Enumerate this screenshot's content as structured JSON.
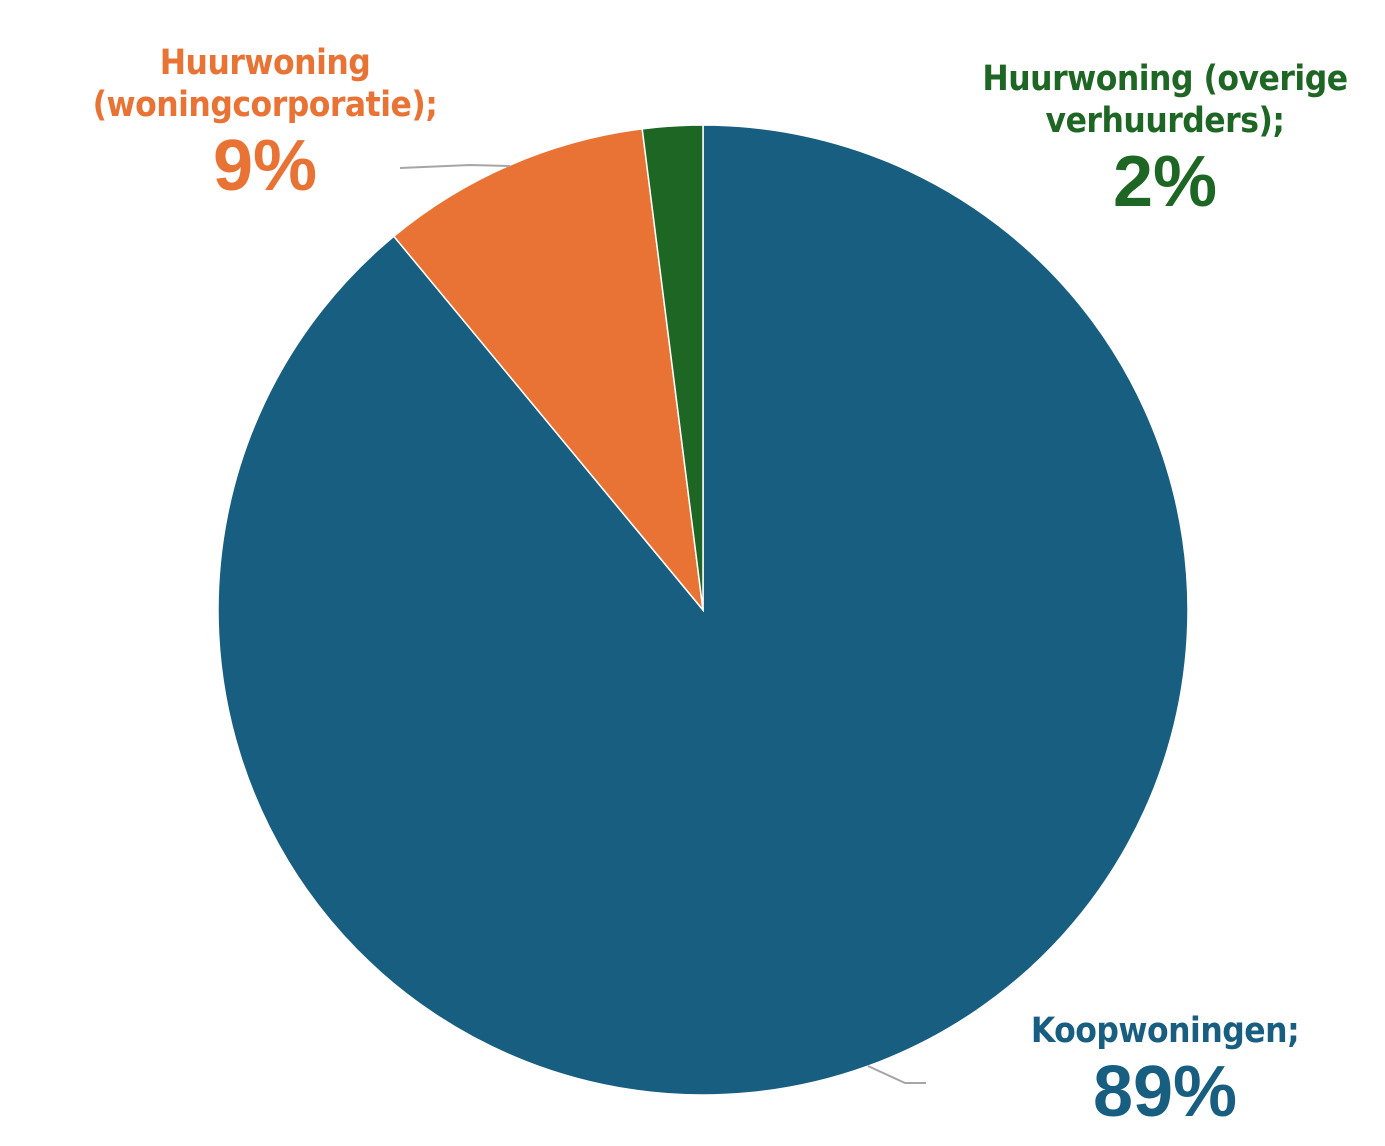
{
  "chart_data": {
    "type": "pie",
    "title": "",
    "slices": [
      {
        "label": "Koopwoningen;",
        "value": 89,
        "value_label": "89%",
        "color": "#175e80"
      },
      {
        "label": "Huurwoning (woningcorporatie);",
        "value": 9,
        "value_label": "9%",
        "color": "#e87334"
      },
      {
        "label": "Huurwoning (overige verhuurders);",
        "value": 2,
        "value_label": "2%",
        "color": "#1e6624"
      }
    ],
    "start_angle": "12 o'clock",
    "direction": "clockwise",
    "legend": "none",
    "data_labels": "outside with leader lines"
  }
}
